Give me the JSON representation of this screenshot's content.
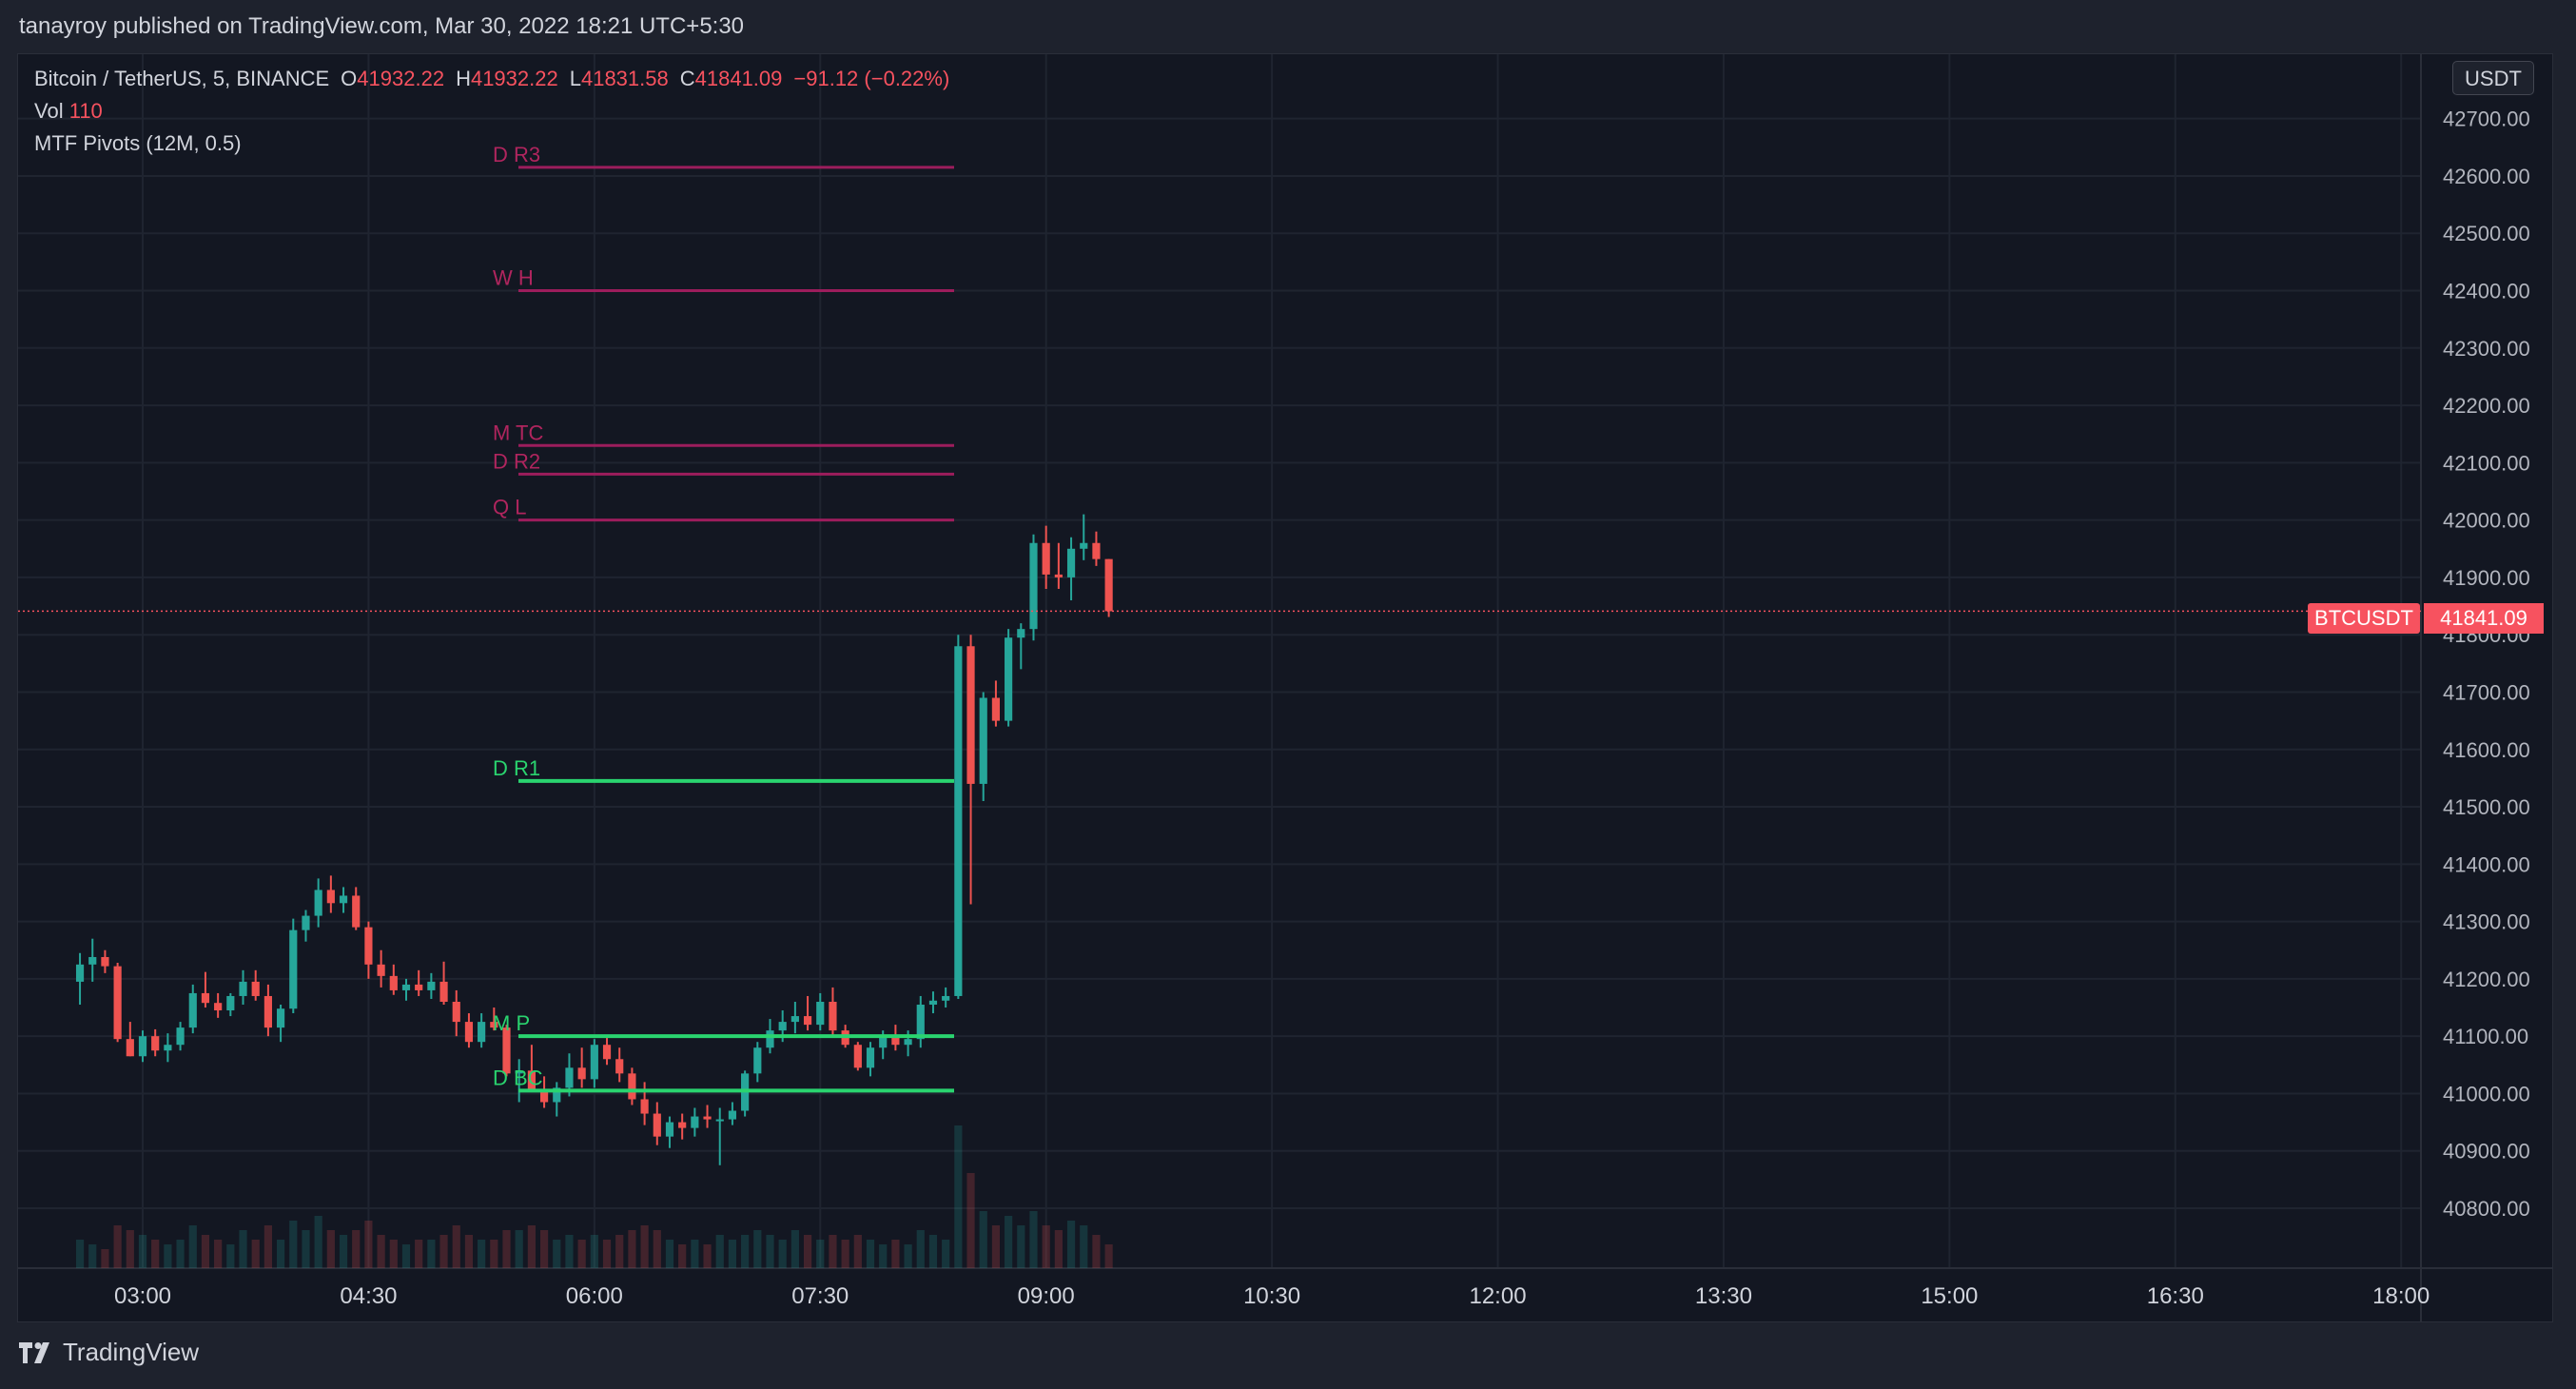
{
  "header": {
    "published_text": "tanayroy published on TradingView.com, Mar 30, 2022 18:21 UTC+5:30"
  },
  "legend": {
    "symbol": "Bitcoin / TetherUS, 5, BINANCE",
    "open_label": "O",
    "open": "41932.22",
    "high_label": "H",
    "high": "41932.22",
    "low_label": "L",
    "low": "41831.58",
    "close_label": "C",
    "close": "41841.09",
    "change": "−91.12 (−0.22%)",
    "vol_label": "Vol",
    "vol": "110",
    "indicator": "MTF Pivots (12M, 0.5)"
  },
  "price_axis": {
    "currency_button": "USDT",
    "ticks": [
      "42700.00",
      "42600.00",
      "42500.00",
      "42400.00",
      "42300.00",
      "42200.00",
      "42100.00",
      "42000.00",
      "41900.00",
      "41800.00",
      "41700.00",
      "41600.00",
      "41500.00",
      "41400.00",
      "41300.00",
      "41200.00",
      "41100.00",
      "41000.00",
      "40900.00",
      "40800.00"
    ],
    "last_symbol": "BTCUSDT",
    "last_price": "41841.09"
  },
  "time_axis": {
    "ticks": [
      "03:00",
      "04:30",
      "06:00",
      "07:30",
      "09:00",
      "10:30",
      "12:00",
      "13:30",
      "15:00",
      "16:30",
      "18:00"
    ]
  },
  "colors": {
    "up": "#26a69a",
    "down": "#ef5350",
    "pivot_resistance": "#9c1d5c",
    "pivot_support": "#2ad46f",
    "background": "#131722",
    "grid": "#1f2430"
  },
  "footer": {
    "brand": "TradingView"
  },
  "chart_data": {
    "type": "candlestick",
    "symbol": "BTCUSDT",
    "interval": "5",
    "ylim": [
      40700,
      42800
    ],
    "x_ticks": [
      "03:00",
      "04:30",
      "06:00",
      "07:30",
      "09:00",
      "10:30",
      "12:00",
      "13:30",
      "15:00",
      "16:30",
      "18:00"
    ],
    "pivots": [
      {
        "label": "D R3",
        "price": 42615,
        "kind": "resistance"
      },
      {
        "label": "W H",
        "price": 42400,
        "kind": "resistance"
      },
      {
        "label": "M TC",
        "price": 42130,
        "kind": "resistance"
      },
      {
        "label": "D R2",
        "price": 42080,
        "kind": "resistance"
      },
      {
        "label": "Q L",
        "price": 42000,
        "kind": "resistance"
      },
      {
        "label": "D R1",
        "price": 41545,
        "kind": "support"
      },
      {
        "label": "M P",
        "price": 41100,
        "kind": "support"
      },
      {
        "label": "D BC",
        "price": 41005,
        "kind": "support"
      }
    ],
    "candles_first_time": "02:35",
    "bar_minutes": 5,
    "candles": [
      [
        41195,
        41245,
        41155,
        41225,
        6
      ],
      [
        41225,
        41270,
        41195,
        41238,
        5
      ],
      [
        41238,
        41250,
        41210,
        41222,
        4
      ],
      [
        41222,
        41228,
        41090,
        41095,
        9
      ],
      [
        41095,
        41125,
        41065,
        41065,
        8
      ],
      [
        41065,
        41110,
        41055,
        41100,
        7
      ],
      [
        41100,
        41112,
        41065,
        41075,
        6
      ],
      [
        41075,
        41105,
        41055,
        41085,
        5
      ],
      [
        41085,
        41125,
        41075,
        41115,
        6
      ],
      [
        41115,
        41190,
        41105,
        41175,
        9
      ],
      [
        41175,
        41212,
        41150,
        41158,
        7
      ],
      [
        41158,
        41175,
        41132,
        41145,
        6
      ],
      [
        41145,
        41175,
        41135,
        41170,
        5
      ],
      [
        41170,
        41215,
        41155,
        41195,
        8
      ],
      [
        41195,
        41215,
        41162,
        41170,
        6
      ],
      [
        41170,
        41190,
        41100,
        41115,
        9
      ],
      [
        41115,
        41155,
        41090,
        41148,
        6
      ],
      [
        41148,
        41305,
        41140,
        41285,
        10
      ],
      [
        41285,
        41320,
        41265,
        41310,
        8
      ],
      [
        41310,
        41375,
        41290,
        41355,
        11
      ],
      [
        41355,
        41380,
        41315,
        41332,
        8
      ],
      [
        41332,
        41360,
        41315,
        41345,
        7
      ],
      [
        41345,
        41360,
        41285,
        41290,
        8
      ],
      [
        41290,
        41300,
        41200,
        41225,
        10
      ],
      [
        41225,
        41250,
        41185,
        41205,
        7
      ],
      [
        41205,
        41225,
        41172,
        41180,
        6
      ],
      [
        41180,
        41200,
        41162,
        41190,
        5
      ],
      [
        41190,
        41215,
        41170,
        41180,
        6
      ],
      [
        41180,
        41210,
        41165,
        41195,
        6
      ],
      [
        41195,
        41230,
        41155,
        41160,
        7
      ],
      [
        41160,
        41180,
        41100,
        41125,
        9
      ],
      [
        41125,
        41140,
        41080,
        41090,
        7
      ],
      [
        41090,
        41140,
        41080,
        41125,
        6
      ],
      [
        41125,
        41150,
        41110,
        41115,
        6
      ],
      [
        41115,
        41120,
        41030,
        41035,
        8
      ],
      [
        41035,
        41060,
        40985,
        41040,
        8
      ],
      [
        41040,
        41085,
        41020,
        41005,
        9
      ],
      [
        41005,
        41030,
        40975,
        40985,
        8
      ],
      [
        40985,
        41020,
        40960,
        41010,
        6
      ],
      [
        41010,
        41070,
        40995,
        41045,
        7
      ],
      [
        41045,
        41080,
        41010,
        41025,
        6
      ],
      [
        41025,
        41095,
        41010,
        41085,
        7
      ],
      [
        41085,
        41100,
        41050,
        41060,
        6
      ],
      [
        41060,
        41080,
        41020,
        41035,
        7
      ],
      [
        41035,
        41045,
        40980,
        40990,
        8
      ],
      [
        40990,
        41020,
        40945,
        40965,
        9
      ],
      [
        40965,
        40985,
        40910,
        40925,
        8
      ],
      [
        40925,
        40960,
        40905,
        40950,
        6
      ],
      [
        40950,
        40965,
        40920,
        40940,
        5
      ],
      [
        40940,
        40975,
        40925,
        40960,
        6
      ],
      [
        40960,
        40980,
        40940,
        40955,
        5
      ],
      [
        40955,
        40975,
        40875,
        40955,
        7
      ],
      [
        40955,
        40985,
        40945,
        40970,
        6
      ],
      [
        40970,
        41040,
        40960,
        41035,
        7
      ],
      [
        41035,
        41090,
        41020,
        41080,
        8
      ],
      [
        41080,
        41130,
        41070,
        41110,
        7
      ],
      [
        41110,
        41145,
        41090,
        41125,
        6
      ],
      [
        41125,
        41160,
        41105,
        41135,
        8
      ],
      [
        41135,
        41170,
        41110,
        41120,
        7
      ],
      [
        41120,
        41175,
        41110,
        41160,
        6
      ],
      [
        41160,
        41185,
        41100,
        41110,
        7
      ],
      [
        41110,
        41120,
        41080,
        41085,
        6
      ],
      [
        41085,
        41090,
        41040,
        41045,
        7
      ],
      [
        41045,
        41090,
        41030,
        41080,
        6
      ],
      [
        41080,
        41110,
        41060,
        41100,
        5
      ],
      [
        41100,
        41120,
        41075,
        41085,
        6
      ],
      [
        41085,
        41110,
        41065,
        41095,
        5
      ],
      [
        41095,
        41170,
        41080,
        41155,
        8
      ],
      [
        41155,
        41178,
        41140,
        41162,
        7
      ],
      [
        41162,
        41185,
        41150,
        41170,
        6
      ],
      [
        41170,
        41800,
        41165,
        41780,
        30
      ],
      [
        41780,
        41800,
        41330,
        41540,
        20
      ],
      [
        41540,
        41700,
        41510,
        41690,
        12
      ],
      [
        41690,
        41720,
        41640,
        41650,
        9
      ],
      [
        41650,
        41810,
        41640,
        41795,
        11
      ],
      [
        41795,
        41820,
        41740,
        41810,
        9
      ],
      [
        41810,
        41975,
        41790,
        41960,
        12
      ],
      [
        41960,
        41990,
        41880,
        41905,
        9
      ],
      [
        41905,
        41960,
        41880,
        41900,
        8
      ],
      [
        41900,
        41970,
        41860,
        41950,
        10
      ],
      [
        41950,
        42010,
        41930,
        41960,
        9
      ],
      [
        41960,
        41980,
        41920,
        41932,
        7
      ],
      [
        41932,
        41932,
        41831,
        41841,
        5
      ]
    ]
  }
}
